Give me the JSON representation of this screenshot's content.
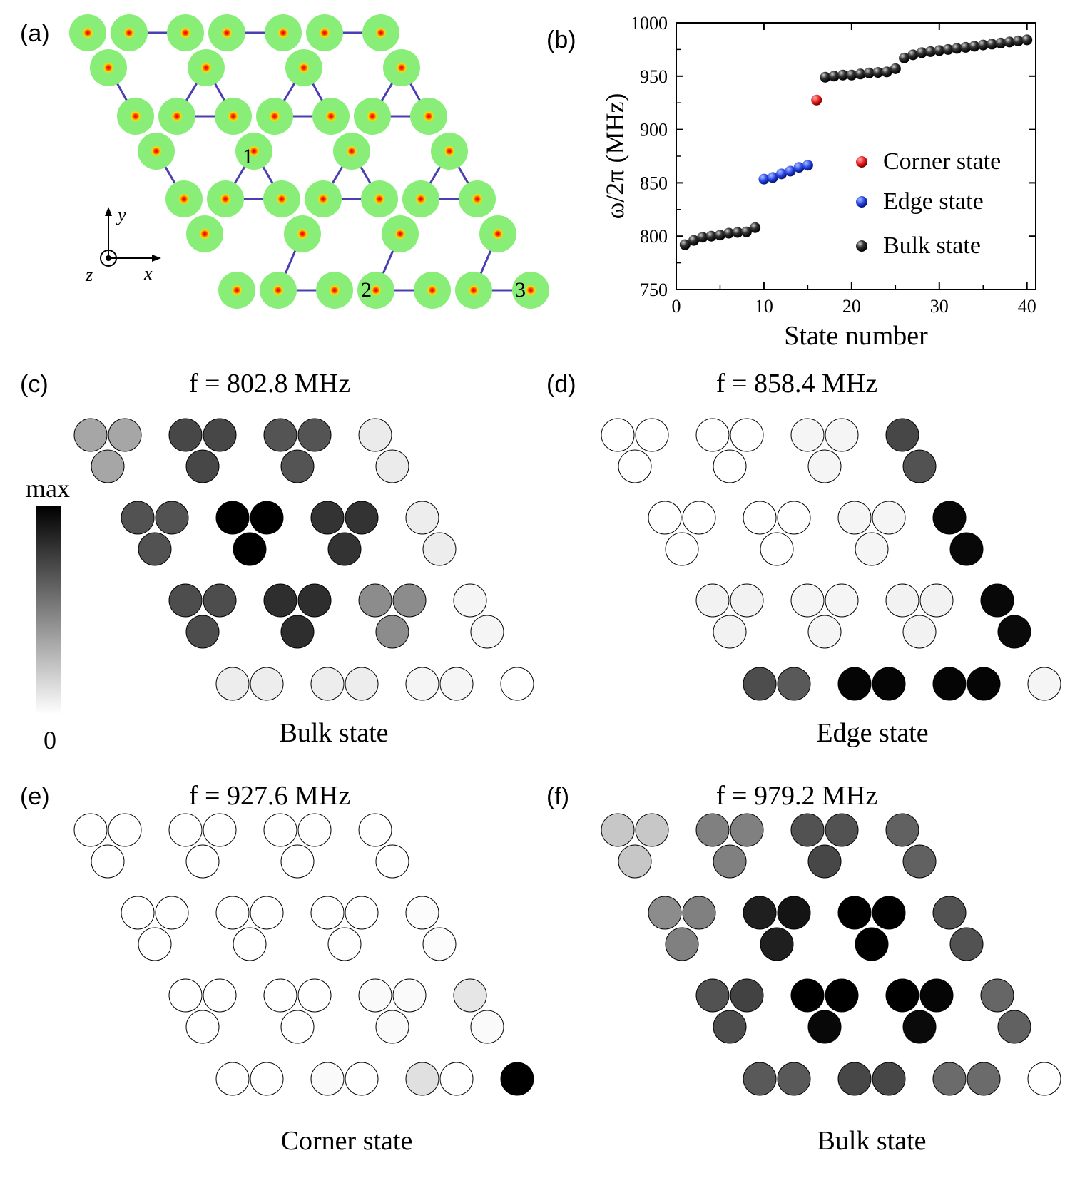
{
  "panel_labels": {
    "a": "(a)",
    "b": "(b)",
    "c": "(c)",
    "d": "(d)",
    "e": "(e)",
    "f": "(f)"
  },
  "panel_a": {
    "site_labels": [
      "1",
      "2",
      "3"
    ],
    "axis_labels": {
      "y": "y",
      "x": "x",
      "z": "z"
    },
    "colors": {
      "disk": "#88ee77",
      "core_outer": "#ffe000",
      "core_mid": "#ff5000",
      "core_center": "#e00000",
      "bond": "#4a3fb0",
      "intra_bond": "#c0392b"
    }
  },
  "chart_data": [
    {
      "type": "scatter",
      "panel": "(b)",
      "xlabel": "State number",
      "ylabel": "ω/2π (MHz)",
      "xlim": [
        0,
        41
      ],
      "ylim": [
        750,
        1000
      ],
      "x_ticks": [
        0,
        10,
        20,
        30,
        40
      ],
      "y_ticks": [
        750,
        800,
        850,
        900,
        950,
        1000
      ],
      "x_minor_step": 5,
      "y_minor_step": 25,
      "legend_position": "right",
      "series": [
        {
          "name": "Corner state",
          "color": "#e41a1c",
          "x": [
            16
          ],
          "y": [
            927.6
          ]
        },
        {
          "name": "Edge state",
          "color": "#1f3fe0",
          "x": [
            10,
            11,
            12,
            13,
            14,
            15
          ],
          "y": [
            853.5,
            855.0,
            858.4,
            861.0,
            864.5,
            866.5
          ]
        },
        {
          "name": "Bulk state",
          "color": "#111111",
          "x": [
            1,
            2,
            3,
            4,
            5,
            6,
            7,
            8,
            9,
            17,
            18,
            19,
            20,
            21,
            22,
            23,
            24,
            25,
            26,
            27,
            28,
            29,
            30,
            31,
            32,
            33,
            34,
            35,
            36,
            37,
            38,
            39,
            40
          ],
          "y": [
            792,
            796,
            799,
            800,
            801,
            802.8,
            803.5,
            804,
            808,
            949,
            950,
            951,
            951,
            952,
            953,
            953.5,
            954,
            957,
            967,
            970,
            972,
            973,
            974,
            975,
            976,
            977,
            978,
            979.2,
            980,
            981,
            982,
            983,
            984
          ]
        }
      ]
    },
    {
      "type": "heatmap",
      "panel": "(c)",
      "title": "f = 802.8 MHz",
      "caption": "Bulk state",
      "colorbar": {
        "max_label": "max",
        "min_label": "0"
      },
      "values": [
        [
          0.35,
          0.35,
          0.35
        ],
        [
          0.72,
          0.72,
          0.72
        ],
        [
          0.67,
          0.67,
          0.67
        ],
        [
          0.08,
          0.08
        ],
        [
          0.68,
          0.68,
          0.68
        ],
        [
          1.0,
          1.0,
          1.0
        ],
        [
          0.8,
          0.8,
          0.8
        ],
        [
          0.07,
          0.07
        ],
        [
          0.7,
          0.7,
          0.7
        ],
        [
          0.82,
          0.82,
          0.82
        ],
        [
          0.45,
          0.45,
          0.45
        ],
        [
          0.04,
          0.04
        ],
        [
          0.07,
          0.07
        ],
        [
          0.07,
          0.07
        ],
        [
          0.04,
          0.04
        ],
        [
          0.0
        ]
      ]
    },
    {
      "type": "heatmap",
      "panel": "(d)",
      "title": "f = 858.4 MHz",
      "caption": "Edge state",
      "values": [
        [
          0.0,
          0.0,
          0.0
        ],
        [
          0.0,
          0.0,
          0.0
        ],
        [
          0.04,
          0.04,
          0.04
        ],
        [
          0.72,
          0.68
        ],
        [
          0.0,
          0.0,
          0.0
        ],
        [
          0.0,
          0.0,
          0.0
        ],
        [
          0.04,
          0.04,
          0.04
        ],
        [
          0.97,
          0.97
        ],
        [
          0.05,
          0.05,
          0.05
        ],
        [
          0.04,
          0.04,
          0.04
        ],
        [
          0.05,
          0.05,
          0.05
        ],
        [
          0.97,
          0.96
        ],
        [
          0.7,
          0.65
        ],
        [
          0.98,
          0.98
        ],
        [
          0.98,
          0.98
        ],
        [
          0.04
        ]
      ]
    },
    {
      "type": "heatmap",
      "panel": "(e)",
      "title": "f = 927.6 MHz",
      "caption": "Corner state",
      "values": [
        [
          0.0,
          0.0,
          0.0
        ],
        [
          0.0,
          0.0,
          0.0
        ],
        [
          0.0,
          0.0,
          0.0
        ],
        [
          0.0,
          0.0
        ],
        [
          0.0,
          0.0,
          0.0
        ],
        [
          0.0,
          0.0,
          0.0
        ],
        [
          0.0,
          0.0,
          0.0
        ],
        [
          0.01,
          0.01
        ],
        [
          0.0,
          0.0,
          0.0
        ],
        [
          0.0,
          0.0,
          0.0
        ],
        [
          0.02,
          0.02,
          0.02
        ],
        [
          0.1,
          0.02
        ],
        [
          0.0,
          0.0
        ],
        [
          0.02,
          0.0
        ],
        [
          0.12,
          0.0
        ],
        [
          1.0
        ]
      ]
    },
    {
      "type": "heatmap",
      "panel": "(f)",
      "title": "f = 979.2 MHz",
      "caption": "Bulk state",
      "values": [
        [
          0.22,
          0.22,
          0.22
        ],
        [
          0.5,
          0.5,
          0.5
        ],
        [
          0.68,
          0.68,
          0.72
        ],
        [
          0.62,
          0.62
        ],
        [
          0.45,
          0.5,
          0.5
        ],
        [
          0.88,
          0.92,
          0.88
        ],
        [
          1.0,
          1.0,
          1.0
        ],
        [
          0.68,
          0.68
        ],
        [
          0.68,
          0.74,
          0.7
        ],
        [
          1.0,
          1.0,
          0.97
        ],
        [
          1.0,
          0.98,
          0.96
        ],
        [
          0.6,
          0.62
        ],
        [
          0.65,
          0.65
        ],
        [
          0.72,
          0.72
        ],
        [
          0.58,
          0.58
        ],
        [
          0.0
        ]
      ]
    }
  ]
}
